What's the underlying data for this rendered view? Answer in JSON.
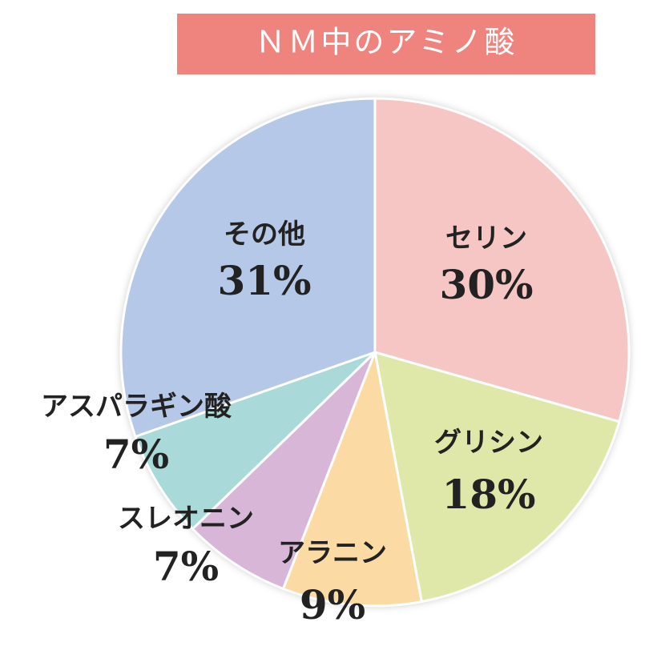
{
  "chart_data": {
    "type": "pie",
    "title": "ＮＭ中のアミノ酸",
    "categories": [
      "セリン",
      "グリシン",
      "アラニン",
      "スレオニン",
      "アスパラギン酸",
      "その他"
    ],
    "values": [
      30,
      18,
      9,
      7,
      7,
      31
    ],
    "value_labels": [
      "30%",
      "18%",
      "9%",
      "7%",
      "7%",
      "31%"
    ],
    "colors": [
      "#f6c6c4",
      "#dfe8a8",
      "#fbdba3",
      "#d8b6d8",
      "#a9d9d9",
      "#b6c8e8"
    ],
    "title_color": "#ef847f"
  }
}
